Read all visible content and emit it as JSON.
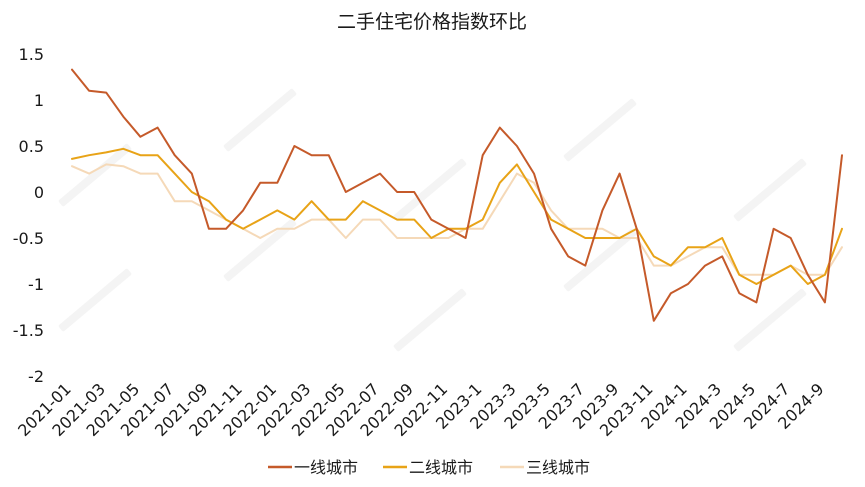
{
  "chart_data": {
    "type": "line",
    "title": "二手住宅价格指数环比",
    "xlabel": "",
    "ylabel": "",
    "ylim": [
      -2,
      1.5
    ],
    "yticks": [
      1.5,
      1,
      0.5,
      0,
      -0.5,
      -1,
      -1.5,
      -2
    ],
    "ytick_labels": [
      "1.5",
      "1",
      "0.5",
      "0",
      "-0.5",
      "-1",
      "-1.5",
      "-2"
    ],
    "grid": false,
    "legend_position": "bottom",
    "x": [
      "2021-01",
      "2021-02",
      "2021-03",
      "2021-04",
      "2021-05",
      "2021-06",
      "2021-07",
      "2021-08",
      "2021-09",
      "2021-10",
      "2021-11",
      "2021-12",
      "2022-01",
      "2022-02",
      "2022-03",
      "2022-04",
      "2022-05",
      "2022-06",
      "2022-07",
      "2022-08",
      "2022-09",
      "2022-10",
      "2022-11",
      "2022-12",
      "2023-1",
      "2023-2",
      "2023-3",
      "2023-4",
      "2023-5",
      "2023-6",
      "2023-7",
      "2023-8",
      "2023-9",
      "2023-10",
      "2023-11",
      "2023-12",
      "2024-1",
      "2024-2",
      "2024-3",
      "2024-4",
      "2024-5",
      "2024-6",
      "2024-7",
      "2024-8",
      "2024-9",
      "2024-10"
    ],
    "xtick_labels": [
      "2021-01",
      "2021-03",
      "2021-05",
      "2021-07",
      "2021-09",
      "2021-11",
      "2022-01",
      "2022-03",
      "2022-05",
      "2022-07",
      "2022-09",
      "2022-11",
      "2023-1",
      "2023-3",
      "2023-5",
      "2023-7",
      "2023-9",
      "2023-11",
      "2024-1",
      "2024-3",
      "2024-5",
      "2024-7",
      "2024-9"
    ],
    "series": [
      {
        "name": "一线城市",
        "color": "#C55A2A",
        "values": [
          1.33,
          1.1,
          1.08,
          0.82,
          0.6,
          0.7,
          0.4,
          0.2,
          -0.4,
          -0.4,
          -0.2,
          0.1,
          0.1,
          0.5,
          0.4,
          0.4,
          0.0,
          0.1,
          0.2,
          0.0,
          0.0,
          -0.3,
          -0.4,
          -0.5,
          0.4,
          0.7,
          0.5,
          0.2,
          -0.4,
          -0.7,
          -0.8,
          -0.2,
          0.2,
          -0.4,
          -1.4,
          -1.1,
          -1.0,
          -0.8,
          -0.7,
          -1.1,
          -1.2,
          -0.4,
          -0.5,
          -0.9,
          -1.2,
          0.4
        ]
      },
      {
        "name": "二线城市",
        "color": "#E8A317",
        "values": [
          0.36,
          0.4,
          0.43,
          0.47,
          0.4,
          0.4,
          0.2,
          0.0,
          -0.1,
          -0.3,
          -0.4,
          -0.3,
          -0.2,
          -0.3,
          -0.1,
          -0.3,
          -0.3,
          -0.1,
          -0.2,
          -0.3,
          -0.3,
          -0.5,
          -0.4,
          -0.4,
          -0.3,
          0.1,
          0.3,
          0.0,
          -0.3,
          -0.4,
          -0.5,
          -0.5,
          -0.5,
          -0.4,
          -0.7,
          -0.8,
          -0.6,
          -0.6,
          -0.5,
          -0.9,
          -1.0,
          -0.9,
          -0.8,
          -1.0,
          -0.9,
          -0.4
        ]
      },
      {
        "name": "三线城市",
        "color": "#F5D9B8",
        "values": [
          0.28,
          0.2,
          0.3,
          0.28,
          0.2,
          0.2,
          -0.1,
          -0.1,
          -0.2,
          -0.3,
          -0.4,
          -0.5,
          -0.4,
          -0.4,
          -0.3,
          -0.3,
          -0.5,
          -0.3,
          -0.3,
          -0.5,
          -0.5,
          -0.5,
          -0.5,
          -0.4,
          -0.4,
          -0.1,
          0.2,
          0.1,
          -0.2,
          -0.4,
          -0.4,
          -0.4,
          -0.5,
          -0.5,
          -0.8,
          -0.8,
          -0.7,
          -0.6,
          -0.6,
          -0.9,
          -0.9,
          -0.9,
          -0.8,
          -0.9,
          -0.9,
          -0.6
        ]
      }
    ]
  }
}
